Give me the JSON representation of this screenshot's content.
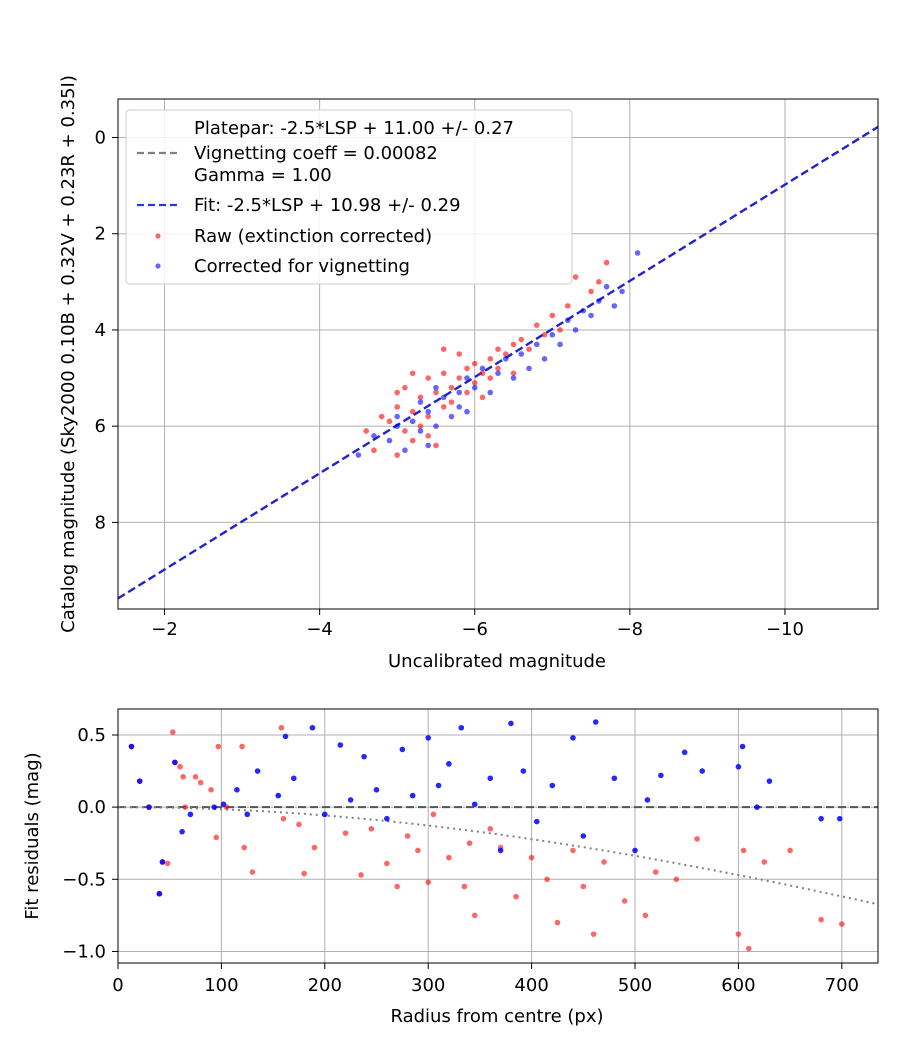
{
  "chart_data": [
    {
      "type": "scatter",
      "xlabel": "Uncalibrated magnitude",
      "ylabel": "Catalog magnitude (Sky2000 0.10B + 0.32V + 0.23R + 0.35I)",
      "xlim": [
        -1.4,
        -11.2
      ],
      "ylim": [
        9.8,
        -0.8
      ],
      "x_inverted": true,
      "y_inverted": true,
      "grid": true,
      "legend_position": "upper-left",
      "xticks": [
        -2,
        -4,
        -6,
        -8,
        -10
      ],
      "xtick_labels": [
        "−2",
        "−4",
        "−6",
        "−8",
        "−10"
      ],
      "yticks": [
        0,
        2,
        4,
        6,
        8
      ],
      "ytick_labels": [
        "0",
        "2",
        "4",
        "6",
        "8"
      ],
      "legend": {
        "platepar_line1": "Platepar: -2.5*LSP + 11.00 +/- 0.27",
        "platepar_line2": "Vignetting coeff = 0.00082",
        "platepar_line3": "Gamma = 1.00",
        "fit": "Fit: -2.5*LSP + 10.98 +/- 0.29",
        "raw": "Raw (extinction corrected)",
        "corrected": "Corrected for vignetting"
      },
      "fit_line": {
        "name": "Fit: -2.5*LSP + 10.98 +/- 0.29",
        "slope": 1.0,
        "intercept": 10.98,
        "color": "#2222cc"
      },
      "series": [
        {
          "name": "Raw (extinction corrected)",
          "color": "#ff0000",
          "points": [
            [
              -4.6,
              6.1
            ],
            [
              -4.7,
              6.5
            ],
            [
              -4.9,
              5.9
            ],
            [
              -5.0,
              6.6
            ],
            [
              -5.0,
              5.6
            ],
            [
              -5.1,
              6.1
            ],
            [
              -5.1,
              5.2
            ],
            [
              -5.2,
              5.7
            ],
            [
              -5.2,
              6.3
            ],
            [
              -5.3,
              5.4
            ],
            [
              -5.3,
              6.0
            ],
            [
              -5.4,
              5.0
            ],
            [
              -5.4,
              5.8
            ],
            [
              -5.5,
              5.3
            ],
            [
              -5.5,
              6.4
            ],
            [
              -5.6,
              5.6
            ],
            [
              -5.6,
              4.9
            ],
            [
              -5.7,
              5.5
            ],
            [
              -5.7,
              5.2
            ],
            [
              -5.8,
              5.0
            ],
            [
              -5.8,
              4.5
            ],
            [
              -5.9,
              5.3
            ],
            [
              -5.9,
              4.8
            ],
            [
              -6.0,
              5.1
            ],
            [
              -6.0,
              4.7
            ],
            [
              -6.1,
              4.9
            ],
            [
              -6.1,
              5.4
            ],
            [
              -6.2,
              4.6
            ],
            [
              -6.2,
              5.0
            ],
            [
              -6.3,
              4.4
            ],
            [
              -6.3,
              4.8
            ],
            [
              -6.4,
              4.5
            ],
            [
              -6.5,
              4.3
            ],
            [
              -6.5,
              4.9
            ],
            [
              -6.6,
              4.2
            ],
            [
              -6.7,
              4.4
            ],
            [
              -6.8,
              3.9
            ],
            [
              -6.9,
              4.1
            ],
            [
              -7.0,
              3.7
            ],
            [
              -7.1,
              4.0
            ],
            [
              -7.2,
              3.5
            ],
            [
              -7.3,
              2.9
            ],
            [
              -7.5,
              3.2
            ],
            [
              -7.6,
              3.0
            ],
            [
              -7.7,
              2.6
            ],
            [
              -5.0,
              5.3
            ],
            [
              -5.2,
              4.9
            ],
            [
              -5.4,
              6.2
            ],
            [
              -5.6,
              4.4
            ],
            [
              -4.8,
              5.8
            ]
          ]
        },
        {
          "name": "Corrected for vignetting",
          "color": "#0000ff",
          "points": [
            [
              -4.5,
              6.6
            ],
            [
              -4.7,
              6.2
            ],
            [
              -4.9,
              6.3
            ],
            [
              -5.0,
              5.8
            ],
            [
              -5.1,
              6.5
            ],
            [
              -5.2,
              5.9
            ],
            [
              -5.3,
              6.1
            ],
            [
              -5.3,
              5.5
            ],
            [
              -5.4,
              5.7
            ],
            [
              -5.5,
              6.0
            ],
            [
              -5.5,
              5.2
            ],
            [
              -5.6,
              5.4
            ],
            [
              -5.7,
              5.8
            ],
            [
              -5.8,
              5.3
            ],
            [
              -5.8,
              5.6
            ],
            [
              -5.9,
              5.0
            ],
            [
              -6.0,
              5.2
            ],
            [
              -6.1,
              4.8
            ],
            [
              -6.2,
              5.3
            ],
            [
              -6.3,
              4.9
            ],
            [
              -6.4,
              4.6
            ],
            [
              -6.5,
              5.0
            ],
            [
              -6.6,
              4.5
            ],
            [
              -6.7,
              4.8
            ],
            [
              -6.8,
              4.3
            ],
            [
              -6.9,
              4.6
            ],
            [
              -7.0,
              4.1
            ],
            [
              -7.1,
              4.3
            ],
            [
              -7.2,
              3.8
            ],
            [
              -7.3,
              4.0
            ],
            [
              -7.4,
              3.6
            ],
            [
              -7.6,
              3.4
            ],
            [
              -7.7,
              3.1
            ],
            [
              -7.8,
              3.5
            ],
            [
              -7.9,
              3.2
            ],
            [
              -8.1,
              2.4
            ],
            [
              -7.5,
              3.7
            ],
            [
              -5.4,
              6.4
            ],
            [
              -5.0,
              6.0
            ],
            [
              -5.9,
              5.7
            ]
          ]
        }
      ]
    },
    {
      "type": "scatter",
      "xlabel": "Radius from centre (px)",
      "ylabel": "Fit residuals (mag)",
      "xlim": [
        0,
        735
      ],
      "ylim": [
        -1.08,
        0.68
      ],
      "grid": true,
      "xticks": [
        0,
        100,
        200,
        300,
        400,
        500,
        600,
        700
      ],
      "xtick_labels": [
        "0",
        "100",
        "200",
        "300",
        "400",
        "500",
        "600",
        "700"
      ],
      "yticks": [
        0.5,
        0.0,
        -0.5,
        -1.0
      ],
      "ytick_labels": [
        "0.5",
        "0.0",
        "−0.5",
        "−1.0"
      ],
      "zero_line": 0.0,
      "vignetting_curve": {
        "coeff": 0.00082,
        "color": "#808080"
      },
      "series": [
        {
          "name": "Raw (extinction corrected)",
          "color": "#ff0000",
          "points": [
            [
              13,
              0.42
            ],
            [
              21,
              0.18
            ],
            [
              30,
              0.0
            ],
            [
              40,
              -0.6
            ],
            [
              43,
              -0.38
            ],
            [
              48,
              -0.39
            ],
            [
              53,
              0.52
            ],
            [
              55,
              0.31
            ],
            [
              60,
              0.28
            ],
            [
              63,
              0.21
            ],
            [
              65,
              0.0
            ],
            [
              75,
              0.21
            ],
            [
              80,
              0.17
            ],
            [
              90,
              0.12
            ],
            [
              95,
              -0.21
            ],
            [
              97,
              0.42
            ],
            [
              105,
              0.0
            ],
            [
              120,
              0.42
            ],
            [
              122,
              -0.28
            ],
            [
              130,
              -0.45
            ],
            [
              158,
              0.55
            ],
            [
              160,
              -0.08
            ],
            [
              175,
              -0.12
            ],
            [
              180,
              -0.46
            ],
            [
              190,
              -0.28
            ],
            [
              220,
              -0.18
            ],
            [
              235,
              -0.47
            ],
            [
              245,
              -0.15
            ],
            [
              260,
              -0.39
            ],
            [
              270,
              -0.55
            ],
            [
              280,
              -0.2
            ],
            [
              290,
              -0.3
            ],
            [
              300,
              -0.52
            ],
            [
              305,
              -0.05
            ],
            [
              320,
              -0.35
            ],
            [
              335,
              -0.55
            ],
            [
              340,
              -0.25
            ],
            [
              345,
              -0.75
            ],
            [
              360,
              -0.15
            ],
            [
              370,
              -0.28
            ],
            [
              385,
              -0.62
            ],
            [
              400,
              -0.35
            ],
            [
              415,
              -0.5
            ],
            [
              425,
              -0.8
            ],
            [
              440,
              -0.3
            ],
            [
              450,
              -0.55
            ],
            [
              460,
              -0.88
            ],
            [
              470,
              -0.38
            ],
            [
              490,
              -0.65
            ],
            [
              510,
              -0.75
            ],
            [
              520,
              -0.45
            ],
            [
              540,
              -0.5
            ],
            [
              560,
              -0.22
            ],
            [
              600,
              -0.88
            ],
            [
              605,
              -0.3
            ],
            [
              610,
              -0.98
            ],
            [
              625,
              -0.38
            ],
            [
              650,
              -0.3
            ],
            [
              680,
              -0.78
            ],
            [
              700,
              -0.81
            ]
          ]
        },
        {
          "name": "Corrected for vignetting",
          "color": "#0000ff",
          "points": [
            [
              13,
              0.42
            ],
            [
              21,
              0.18
            ],
            [
              30,
              0.0
            ],
            [
              40,
              -0.6
            ],
            [
              43,
              -0.38
            ],
            [
              55,
              0.31
            ],
            [
              62,
              -0.17
            ],
            [
              70,
              -0.05
            ],
            [
              93,
              0.0
            ],
            [
              102,
              0.02
            ],
            [
              115,
              0.12
            ],
            [
              125,
              -0.05
            ],
            [
              135,
              0.25
            ],
            [
              155,
              0.08
            ],
            [
              162,
              0.49
            ],
            [
              170,
              0.2
            ],
            [
              188,
              0.55
            ],
            [
              200,
              -0.05
            ],
            [
              215,
              0.43
            ],
            [
              225,
              0.05
            ],
            [
              238,
              0.35
            ],
            [
              250,
              0.12
            ],
            [
              260,
              -0.08
            ],
            [
              275,
              0.4
            ],
            [
              285,
              0.08
            ],
            [
              300,
              0.48
            ],
            [
              310,
              0.15
            ],
            [
              320,
              0.3
            ],
            [
              332,
              0.55
            ],
            [
              345,
              0.02
            ],
            [
              360,
              0.2
            ],
            [
              370,
              -0.3
            ],
            [
              380,
              0.58
            ],
            [
              392,
              0.25
            ],
            [
              405,
              -0.1
            ],
            [
              420,
              0.15
            ],
            [
              440,
              0.48
            ],
            [
              450,
              -0.2
            ],
            [
              462,
              0.59
            ],
            [
              480,
              0.2
            ],
            [
              500,
              -0.3
            ],
            [
              512,
              0.05
            ],
            [
              525,
              0.22
            ],
            [
              548,
              0.38
            ],
            [
              565,
              0.25
            ],
            [
              600,
              0.28
            ],
            [
              604,
              0.42
            ],
            [
              618,
              0.0
            ],
            [
              630,
              0.18
            ],
            [
              680,
              -0.08
            ],
            [
              698,
              -0.08
            ]
          ]
        }
      ]
    }
  ]
}
